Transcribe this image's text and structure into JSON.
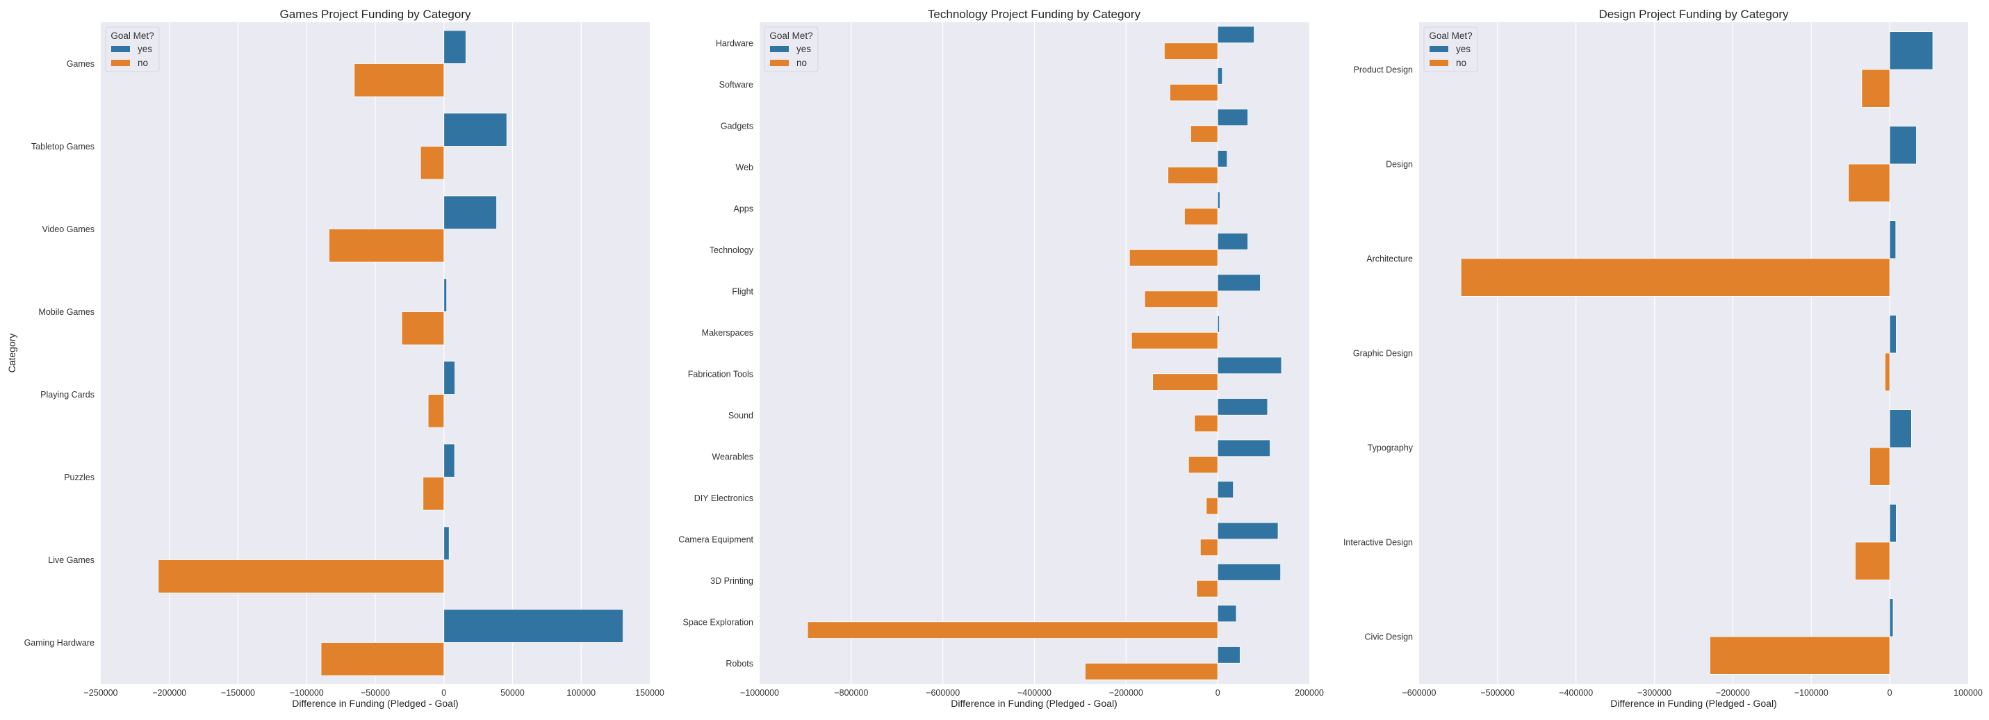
{
  "figure": {
    "background": "#ffffff",
    "axes_background": "#eaeaf2",
    "grid_color": "#ffffff"
  },
  "chart_data": [
    {
      "type": "bar",
      "orientation": "horizontal",
      "title": "Games Project Funding by Category",
      "xlabel": "Difference in Funding (Pledged - Goal)",
      "ylabel": "Category",
      "xlim": [
        -250000,
        150000
      ],
      "xticks": [
        -250000,
        -200000,
        -150000,
        -100000,
        -50000,
        0,
        50000,
        100000,
        150000
      ],
      "xtick_labels": [
        "−250000",
        "−200000",
        "−150000",
        "−100000",
        "−50000",
        "0",
        "50000",
        "100000",
        "150000"
      ],
      "grid": true,
      "legend": {
        "title": "Goal Met?",
        "placement": "top-left"
      },
      "categories": [
        "Games",
        "Tabletop Games",
        "Video Games",
        "Mobile Games",
        "Playing Cards",
        "Puzzles",
        "Live Games",
        "Gaming Hardware"
      ],
      "series": [
        {
          "name": "yes",
          "color": "#3274a1",
          "values": [
            16000,
            45800,
            38400,
            2000,
            8000,
            7800,
            3800,
            130500
          ]
        },
        {
          "name": "no",
          "color": "#e1812c",
          "values": [
            -65300,
            -17000,
            -83700,
            -30700,
            -11500,
            -15200,
            -208100,
            -89500
          ]
        }
      ]
    },
    {
      "type": "bar",
      "orientation": "horizontal",
      "title": "Technology Project Funding by Category",
      "xlabel": "Difference in Funding (Pledged - Goal)",
      "ylabel": "",
      "xlim": [
        -1000000,
        200000
      ],
      "xticks": [
        -1000000,
        -800000,
        -600000,
        -400000,
        -200000,
        0,
        200000
      ],
      "xtick_labels": [
        "−1000000",
        "−800000",
        "−600000",
        "−400000",
        "−200000",
        "0",
        "200000"
      ],
      "grid": true,
      "legend": {
        "title": "Goal Met?",
        "placement": "top-left"
      },
      "categories": [
        "Hardware",
        "Software",
        "Gadgets",
        "Web",
        "Apps",
        "Technology",
        "Flight",
        "Makerspaces",
        "Fabrication Tools",
        "Sound",
        "Wearables",
        "DIY Electronics",
        "Camera Equipment",
        "3D Printing",
        "Space Exploration",
        "Robots"
      ],
      "series": [
        {
          "name": "yes",
          "color": "#3274a1",
          "values": [
            79500,
            10000,
            65800,
            20700,
            5000,
            65800,
            93100,
            3700,
            139200,
            108800,
            114300,
            34100,
            131800,
            137300,
            40600,
            48800
          ]
        },
        {
          "name": "no",
          "color": "#e1812c",
          "values": [
            -116600,
            -104400,
            -58800,
            -108500,
            -72500,
            -192600,
            -159400,
            -188000,
            -141900,
            -50700,
            -63600,
            -24900,
            -37800,
            -46100,
            -895300,
            -289400
          ]
        }
      ]
    },
    {
      "type": "bar",
      "orientation": "horizontal",
      "title": "Design Project Funding by Category",
      "xlabel": "Difference in Funding (Pledged - Goal)",
      "ylabel": "",
      "xlim": [
        -600000,
        100000
      ],
      "xticks": [
        -600000,
        -500000,
        -400000,
        -300000,
        -200000,
        -100000,
        0,
        100000
      ],
      "xtick_labels": [
        "−600000",
        "−500000",
        "−400000",
        "−300000",
        "−200000",
        "−100000",
        "0",
        "100000"
      ],
      "grid": true,
      "legend": {
        "title": "Goal Met?",
        "placement": "top-left"
      },
      "categories": [
        "Product Design",
        "Design",
        "Architecture",
        "Graphic Design",
        "Typography",
        "Interactive Design",
        "Civic Design"
      ],
      "series": [
        {
          "name": "yes",
          "color": "#3274a1",
          "values": [
            54900,
            34000,
            7700,
            8200,
            27700,
            8200,
            4300
          ]
        },
        {
          "name": "no",
          "color": "#e1812c",
          "values": [
            -35700,
            -52700,
            -546700,
            -6000,
            -25500,
            -44000,
            -229300
          ]
        }
      ]
    }
  ]
}
